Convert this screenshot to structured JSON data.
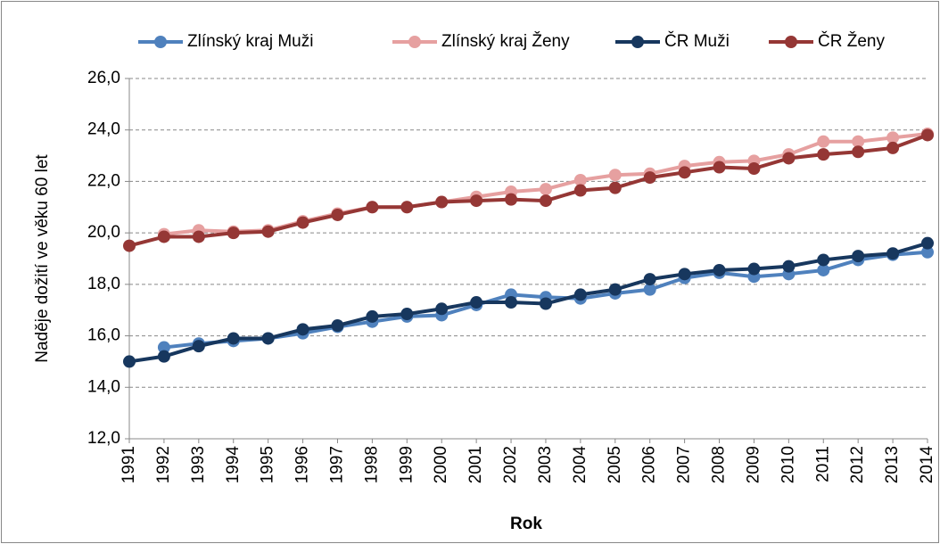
{
  "chart_data": {
    "type": "line",
    "y_label": "Naděje dožití ve věku 60 let",
    "x_label": "Rok",
    "categories": [
      "1991",
      "1992",
      "1993",
      "1994",
      "1995",
      "1996",
      "1997",
      "1998",
      "1999",
      "2000",
      "2001",
      "2002",
      "2003",
      "2004",
      "2005",
      "2006",
      "2007",
      "2008",
      "2009",
      "2010",
      "2011",
      "2012",
      "2013",
      "2014"
    ],
    "series": [
      {
        "name": "Zlínský kraj Muži",
        "color": "#4f81bd",
        "values": [
          null,
          15.55,
          15.7,
          15.8,
          15.9,
          16.1,
          16.35,
          16.55,
          16.75,
          16.8,
          17.2,
          17.6,
          17.5,
          17.45,
          17.65,
          17.8,
          18.25,
          18.45,
          18.3,
          18.4,
          18.55,
          18.95,
          19.15,
          19.25
        ]
      },
      {
        "name": "Zlínský kraj Ženy",
        "color": "#e6a0a0",
        "values": [
          null,
          19.95,
          20.1,
          20.05,
          20.1,
          20.45,
          20.75,
          21.0,
          21.0,
          21.2,
          21.4,
          21.6,
          21.7,
          22.05,
          22.25,
          22.3,
          22.6,
          22.75,
          22.8,
          23.05,
          23.55,
          23.55,
          23.7,
          23.85
        ]
      },
      {
        "name": "ČR Muži",
        "color": "#17375e",
        "values": [
          15.0,
          15.2,
          15.6,
          15.9,
          15.9,
          16.25,
          16.4,
          16.75,
          16.85,
          17.05,
          17.3,
          17.3,
          17.25,
          17.6,
          17.8,
          18.2,
          18.4,
          18.55,
          18.6,
          18.7,
          18.95,
          19.1,
          19.2,
          19.6
        ]
      },
      {
        "name": "ČR Ženy",
        "color": "#953735",
        "values": [
          19.5,
          19.85,
          19.85,
          20.0,
          20.05,
          20.4,
          20.7,
          21.0,
          21.0,
          21.2,
          21.25,
          21.3,
          21.25,
          21.65,
          21.75,
          22.15,
          22.35,
          22.55,
          22.5,
          22.9,
          23.05,
          23.15,
          23.3,
          23.8
        ]
      }
    ],
    "ylim": [
      12,
      26
    ],
    "yticks": [
      {
        "value": 12,
        "label": "12,0"
      },
      {
        "value": 14,
        "label": "14,0"
      },
      {
        "value": 16,
        "label": "16,0"
      },
      {
        "value": 18,
        "label": "18,0"
      },
      {
        "value": 20,
        "label": "20,0"
      },
      {
        "value": 22,
        "label": "22,0"
      },
      {
        "value": 24,
        "label": "24,0"
      },
      {
        "value": 26,
        "label": "26,0"
      }
    ],
    "grid": true,
    "legend": "top"
  }
}
